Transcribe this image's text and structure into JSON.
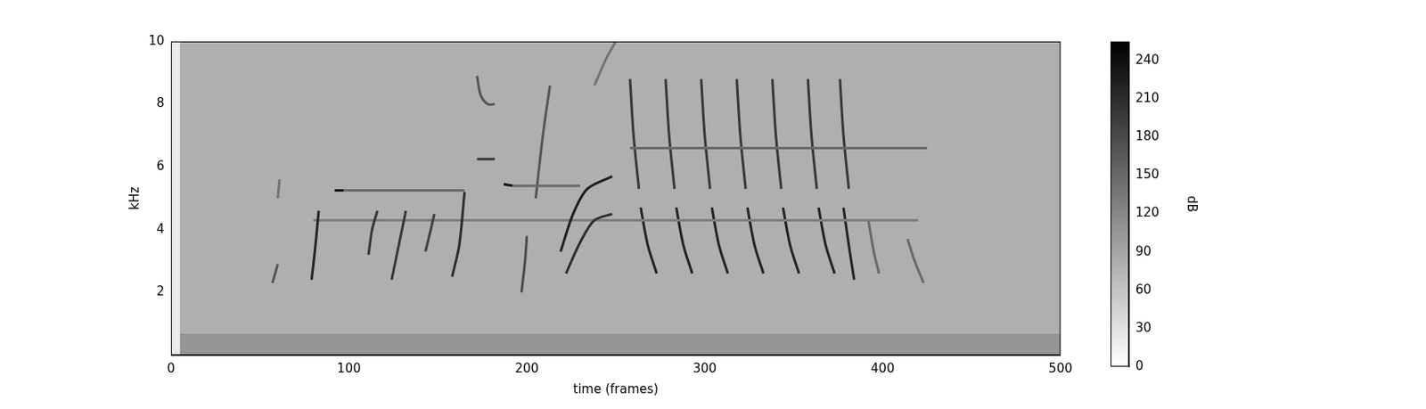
{
  "chart_data": {
    "type": "heatmap",
    "xlabel": "time (frames)",
    "ylabel": "kHz",
    "xlim": [
      0,
      500
    ],
    "xticks": [
      0,
      100,
      200,
      300,
      400,
      500
    ],
    "ylim": [
      0,
      10
    ],
    "yticks": [
      2,
      4,
      6,
      8,
      10
    ],
    "grid": false,
    "colorbar": {
      "label": "dB",
      "range": [
        0,
        255
      ],
      "ticks": [
        0,
        30,
        60,
        90,
        120,
        150,
        180,
        210,
        240
      ]
    },
    "cells": [
      {
        "x": [
          0,
          500
        ],
        "y": [
          0.7,
          10
        ],
        "value": 80
      },
      {
        "x": [
          0,
          500
        ],
        "y": [
          0,
          0.7
        ],
        "value": 105
      },
      {
        "x": [
          0,
          5
        ],
        "y": [
          0,
          10
        ],
        "value": 20
      }
    ],
    "traces": [
      {
        "x": [
          57,
          60
        ],
        "y": [
          2.3,
          2.9
        ],
        "value": 170
      },
      {
        "x": [
          60,
          61
        ],
        "y": [
          5.0,
          5.6
        ],
        "value": 140
      },
      {
        "x": [
          79,
          81,
          83
        ],
        "y": [
          2.4,
          3.4,
          4.6
        ],
        "value": 220
      },
      {
        "x": [
          92,
          97
        ],
        "y": [
          5.25,
          5.25
        ],
        "value": 235
      },
      {
        "x": [
          97,
          165
        ],
        "y": [
          5.25,
          5.25
        ],
        "value": 150
      },
      {
        "x": [
          111,
          113,
          116
        ],
        "y": [
          3.2,
          4.0,
          4.6
        ],
        "value": 200
      },
      {
        "x": [
          124,
          128,
          132
        ],
        "y": [
          2.4,
          3.5,
          4.6
        ],
        "value": 200
      },
      {
        "x": [
          143,
          146,
          148
        ],
        "y": [
          3.3,
          4.0,
          4.5
        ],
        "value": 190
      },
      {
        "x": [
          158,
          162,
          165
        ],
        "y": [
          2.5,
          3.5,
          5.2
        ],
        "value": 210
      },
      {
        "x": [
          172,
          174,
          178,
          182
        ],
        "y": [
          8.9,
          8.3,
          8.0,
          8.0
        ],
        "value": 170
      },
      {
        "x": [
          172,
          182
        ],
        "y": [
          6.25,
          6.25
        ],
        "value": 200
      },
      {
        "x": [
          187,
          192
        ],
        "y": [
          5.45,
          5.4
        ],
        "value": 240
      },
      {
        "x": [
          192,
          230
        ],
        "y": [
          5.4,
          5.4
        ],
        "value": 150
      },
      {
        "x": [
          197,
          199,
          200
        ],
        "y": [
          2.0,
          3.0,
          3.8
        ],
        "value": 180
      },
      {
        "x": [
          205,
          209,
          213
        ],
        "y": [
          5.0,
          7.0,
          8.6
        ],
        "value": 170
      },
      {
        "x": [
          219,
          226,
          234,
          248
        ],
        "y": [
          3.3,
          4.5,
          5.3,
          5.7
        ],
        "value": 225
      },
      {
        "x": [
          222,
          230,
          238,
          248
        ],
        "y": [
          2.6,
          3.6,
          4.3,
          4.5
        ],
        "value": 210
      },
      {
        "x": [
          238,
          245,
          250
        ],
        "y": [
          8.6,
          9.5,
          10
        ],
        "value": 140
      },
      {
        "x": [
          80,
          420
        ],
        "y": [
          4.3,
          4.3
        ],
        "value": 130
      },
      {
        "x": [
          258,
          425
        ],
        "y": [
          6.6,
          6.6
        ],
        "value": 150
      },
      {
        "x": [
          258,
          260,
          263
        ],
        "y": [
          8.8,
          7.0,
          5.3
        ],
        "value": 200
      },
      {
        "x": [
          278,
          280,
          283
        ],
        "y": [
          8.8,
          7.0,
          5.3
        ],
        "value": 200
      },
      {
        "x": [
          298,
          300,
          303
        ],
        "y": [
          8.8,
          7.0,
          5.3
        ],
        "value": 200
      },
      {
        "x": [
          318,
          320,
          323
        ],
        "y": [
          8.8,
          7.0,
          5.3
        ],
        "value": 200
      },
      {
        "x": [
          338,
          340,
          343
        ],
        "y": [
          8.8,
          7.0,
          5.3
        ],
        "value": 200
      },
      {
        "x": [
          358,
          360,
          363
        ],
        "y": [
          8.8,
          7.0,
          5.3
        ],
        "value": 200
      },
      {
        "x": [
          376,
          378,
          381
        ],
        "y": [
          8.8,
          7.0,
          5.3
        ],
        "value": 200
      },
      {
        "x": [
          264,
          268,
          273
        ],
        "y": [
          4.7,
          3.5,
          2.6
        ],
        "value": 220
      },
      {
        "x": [
          284,
          288,
          293
        ],
        "y": [
          4.7,
          3.5,
          2.6
        ],
        "value": 220
      },
      {
        "x": [
          304,
          308,
          313
        ],
        "y": [
          4.7,
          3.5,
          2.6
        ],
        "value": 220
      },
      {
        "x": [
          324,
          328,
          333
        ],
        "y": [
          4.7,
          3.5,
          2.6
        ],
        "value": 220
      },
      {
        "x": [
          344,
          348,
          353
        ],
        "y": [
          4.7,
          3.5,
          2.6
        ],
        "value": 220
      },
      {
        "x": [
          364,
          368,
          373
        ],
        "y": [
          4.7,
          3.5,
          2.6
        ],
        "value": 220
      },
      {
        "x": [
          378,
          381,
          384
        ],
        "y": [
          4.7,
          3.5,
          2.4
        ],
        "value": 220
      },
      {
        "x": [
          392,
          395,
          398
        ],
        "y": [
          4.3,
          3.3,
          2.6
        ],
        "value": 150
      },
      {
        "x": [
          414,
          418,
          423
        ],
        "y": [
          3.7,
          3.0,
          2.3
        ],
        "value": 150
      }
    ]
  }
}
